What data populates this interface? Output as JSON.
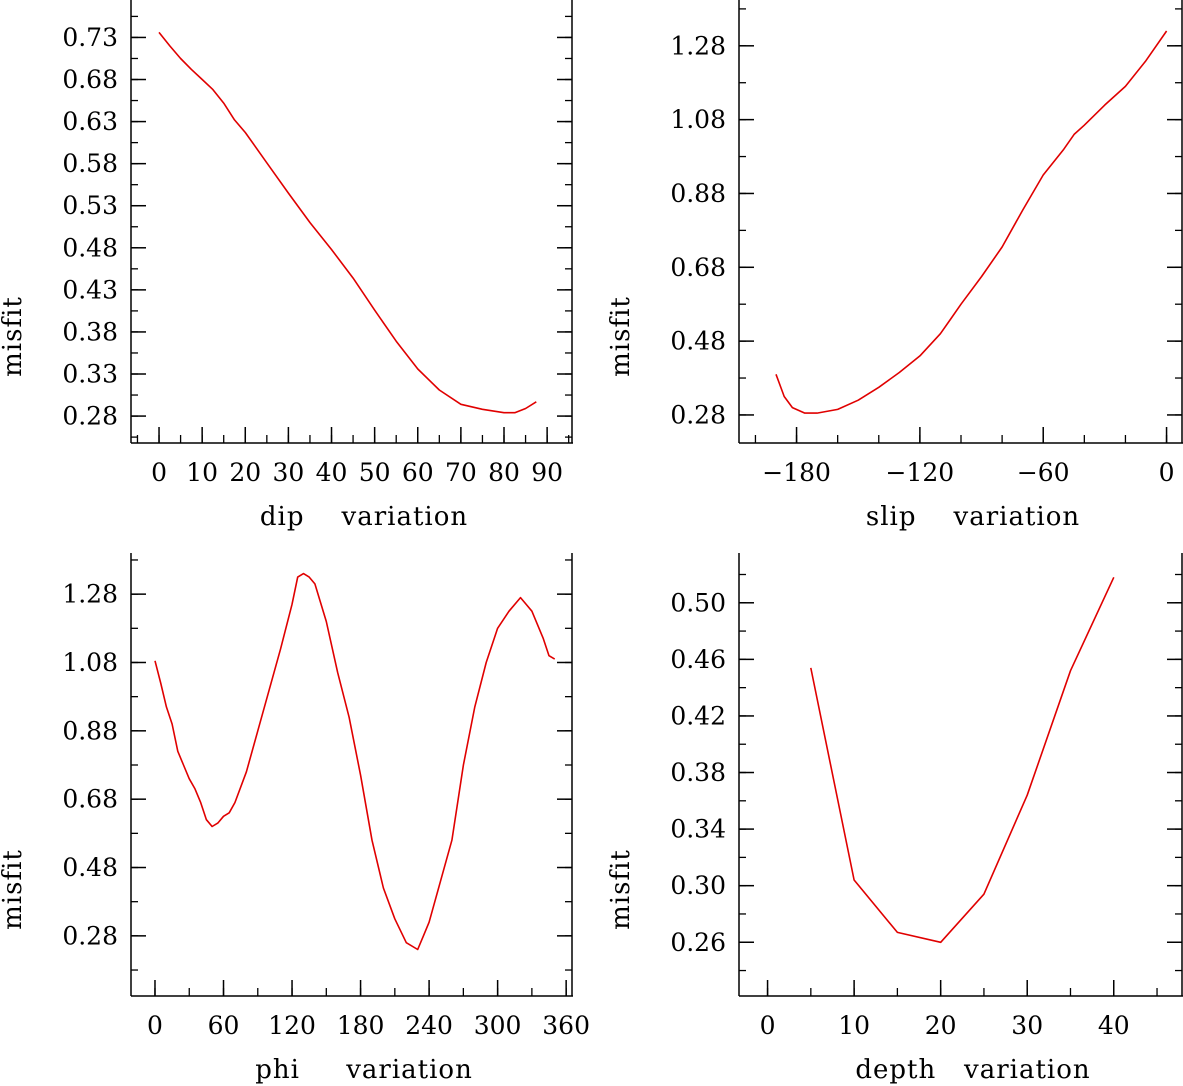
{
  "colors": {
    "line": "#e00000",
    "axes": "#000000",
    "background": "#ffffff"
  },
  "chart_data": [
    {
      "type": "line",
      "xlabel": "dip    variation",
      "ylabel": "misfit",
      "xlim": [
        -6.5,
        96
      ],
      "ylim": [
        0.248,
        0.7745
      ],
      "xticks": [
        0,
        10,
        20,
        30,
        40,
        50,
        60,
        70,
        80,
        90
      ],
      "xtick_labels": [
        "0",
        "10",
        "20",
        "30",
        "40",
        "50",
        "60",
        "70",
        "80",
        "90"
      ],
      "x_minor": 5,
      "yticks": [
        0.28,
        0.33,
        0.38,
        0.43,
        0.48,
        0.53,
        0.58,
        0.63,
        0.68,
        0.73
      ],
      "ytick_labels": [
        "0.28",
        "0.33",
        "0.38",
        "0.43",
        "0.48",
        "0.53",
        "0.58",
        "0.63",
        "0.68",
        "0.73"
      ],
      "y_minor": 0.025,
      "series": [
        {
          "x": [
            0,
            2.5,
            5,
            7.5,
            10,
            12.5,
            15,
            17.5,
            20,
            25,
            30,
            35,
            40,
            45,
            50,
            55,
            60,
            65,
            70,
            75,
            80,
            82.5,
            85,
            87.5
          ],
          "y": [
            0.736,
            0.72,
            0.705,
            0.692,
            0.68,
            0.668,
            0.652,
            0.632,
            0.617,
            0.581,
            0.545,
            0.51,
            0.478,
            0.444,
            0.406,
            0.369,
            0.336,
            0.311,
            0.294,
            0.288,
            0.284,
            0.284,
            0.289,
            0.297
          ]
        }
      ]
    },
    {
      "type": "line",
      "xlabel": "slip    variation",
      "ylabel": "misfit",
      "xlim": [
        -208,
        8
      ],
      "ylim": [
        0.204,
        1.4041
      ],
      "xticks": [
        -180,
        -120,
        -60,
        0
      ],
      "xtick_labels": [
        "−180",
        "−120",
        "−60",
        "0"
      ],
      "x_minor": 20,
      "yticks": [
        0.28,
        0.48,
        0.68,
        0.88,
        1.08,
        1.28
      ],
      "ytick_labels": [
        "0.28",
        "0.48",
        "0.68",
        "0.88",
        "1.08",
        "1.28"
      ],
      "y_minor": 0.1,
      "series": [
        {
          "x": [
            -190,
            -186,
            -182,
            -176,
            -170,
            -160,
            -150,
            -140,
            -130,
            -120,
            -110,
            -105,
            -100,
            -90,
            -80,
            -70,
            -60,
            -50,
            -45,
            -40,
            -30,
            -20,
            -10,
            0
          ],
          "y": [
            0.39,
            0.33,
            0.3,
            0.285,
            0.285,
            0.295,
            0.32,
            0.355,
            0.395,
            0.44,
            0.5,
            0.54,
            0.58,
            0.655,
            0.735,
            0.835,
            0.93,
            1.0,
            1.04,
            1.065,
            1.12,
            1.17,
            1.24,
            1.32
          ]
        }
      ]
    },
    {
      "type": "line",
      "xlabel": "phi     variation",
      "ylabel": "misfit",
      "xlim": [
        -21,
        366
      ],
      "ylim": [
        0.104,
        1.4004
      ],
      "xticks": [
        0,
        60,
        120,
        180,
        240,
        300,
        360
      ],
      "xtick_labels": [
        "0",
        "60",
        "120",
        "180",
        "240",
        "300",
        "360"
      ],
      "x_minor": 30,
      "yticks": [
        0.28,
        0.48,
        0.68,
        0.88,
        1.08,
        1.28
      ],
      "ytick_labels": [
        "0.28",
        "0.48",
        "0.68",
        "0.88",
        "1.08",
        "1.28"
      ],
      "y_minor": 0.1,
      "series": [
        {
          "x": [
            0,
            5,
            10,
            15,
            20,
            25,
            30,
            35,
            40,
            45,
            50,
            55,
            60,
            65,
            70,
            80,
            90,
            100,
            110,
            120,
            125,
            130,
            135,
            140,
            150,
            160,
            170,
            180,
            190,
            200,
            210,
            220,
            230,
            235,
            240,
            245,
            250,
            260,
            270,
            280,
            290,
            300,
            310,
            320,
            325,
            330,
            340,
            345,
            350
          ],
          "y": [
            1.085,
            1.02,
            0.95,
            0.9,
            0.82,
            0.78,
            0.74,
            0.71,
            0.67,
            0.62,
            0.6,
            0.61,
            0.63,
            0.64,
            0.67,
            0.76,
            0.88,
            1.0,
            1.12,
            1.25,
            1.33,
            1.34,
            1.33,
            1.31,
            1.2,
            1.05,
            0.92,
            0.75,
            0.56,
            0.42,
            0.33,
            0.26,
            0.24,
            0.28,
            0.32,
            0.38,
            0.44,
            0.56,
            0.78,
            0.95,
            1.08,
            1.18,
            1.23,
            1.27,
            1.25,
            1.23,
            1.15,
            1.1,
            1.09
          ]
        }
      ]
    },
    {
      "type": "line",
      "xlabel": "depth   variation",
      "ylabel": "misfit",
      "xlim": [
        -3.3,
        48
      ],
      "ylim": [
        0.222,
        0.5352
      ],
      "xticks": [
        0,
        10,
        20,
        30,
        40
      ],
      "xtick_labels": [
        "0",
        "10",
        "20",
        "30",
        "40"
      ],
      "x_minor": 5,
      "yticks": [
        0.26,
        0.3,
        0.34,
        0.38,
        0.42,
        0.46,
        0.5
      ],
      "ytick_labels": [
        "0.26",
        "0.30",
        "0.34",
        "0.38",
        "0.42",
        "0.46",
        "0.50"
      ],
      "y_minor": 0.02,
      "series": [
        {
          "x": [
            5,
            10,
            15,
            20,
            25,
            30,
            35,
            40
          ],
          "y": [
            0.454,
            0.304,
            0.267,
            0.26,
            0.294,
            0.364,
            0.452,
            0.518
          ]
        }
      ]
    }
  ]
}
